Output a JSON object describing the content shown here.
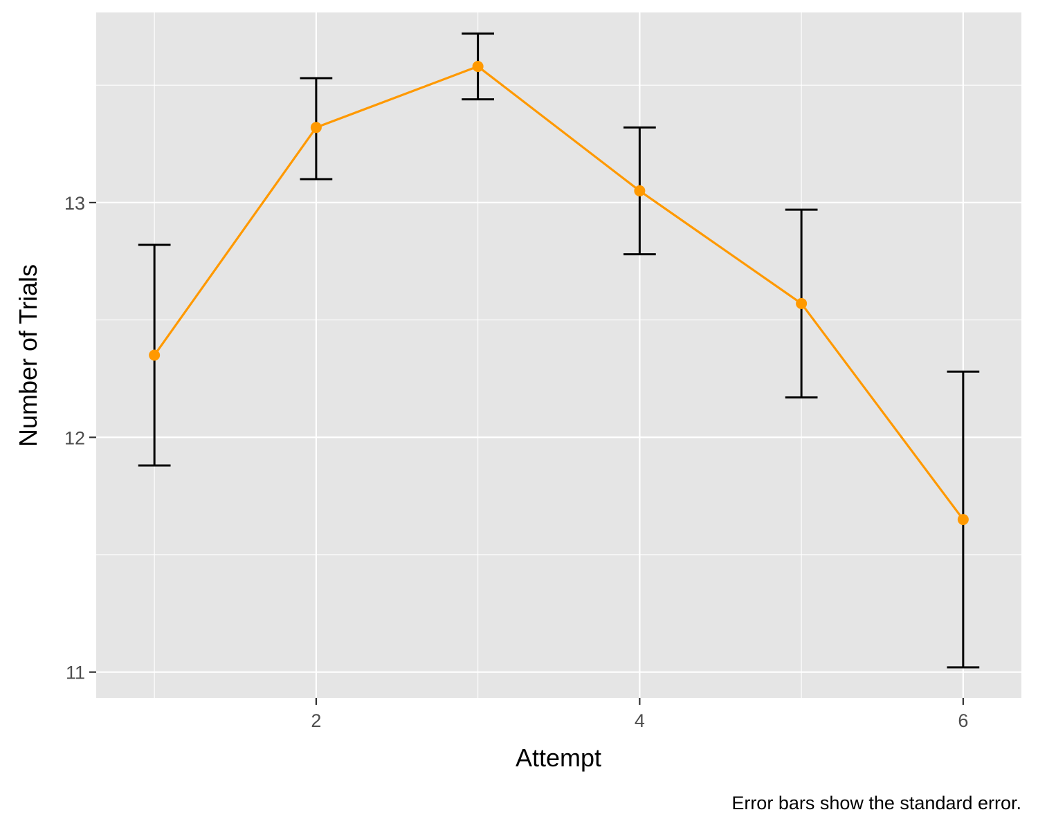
{
  "chart_data": {
    "type": "line",
    "xlabel": "Attempt",
    "ylabel": "Number of Trials",
    "caption": "Error bars show the standard error.",
    "xlim": [
      0.64,
      6.36
    ],
    "ylim": [
      10.89,
      13.81
    ],
    "x_ticks": [
      2,
      4,
      6
    ],
    "y_ticks": [
      11,
      12,
      13
    ],
    "x_tick_labels": [
      "2",
      "4",
      "6"
    ],
    "y_tick_labels": [
      "11",
      "12",
      "13"
    ],
    "grid": true,
    "line_color": "#FF9900",
    "errorbar_color": "#000000",
    "panel_background": "#E5E5E5",
    "series": [
      {
        "x": [
          1,
          2,
          3,
          4,
          5,
          6
        ],
        "y": [
          12.35,
          13.32,
          13.58,
          13.05,
          12.57,
          11.65
        ],
        "ymin": [
          11.88,
          13.1,
          13.44,
          12.78,
          12.17,
          11.02
        ],
        "ymax": [
          12.82,
          13.53,
          13.72,
          13.32,
          12.97,
          12.28
        ]
      }
    ]
  }
}
